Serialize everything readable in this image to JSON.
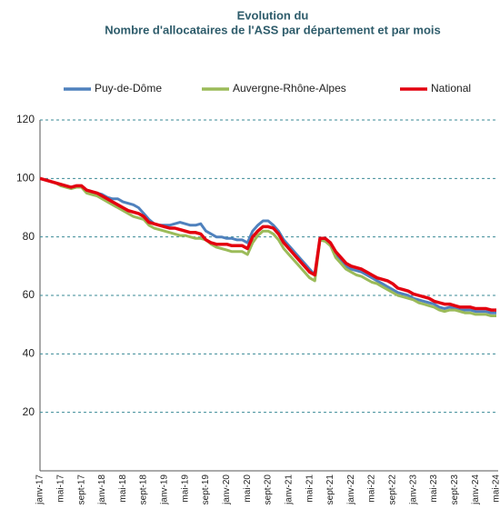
{
  "chart_data": {
    "type": "line",
    "title": "Evolution du",
    "subtitle": "Nombre d'allocataires de l'ASS par département et par mois",
    "categories": [
      "janv-17",
      null,
      null,
      null,
      "mai-17",
      null,
      null,
      null,
      "sept-17",
      null,
      null,
      null,
      "janv-18",
      null,
      null,
      null,
      "mai-18",
      null,
      null,
      null,
      "sept-18",
      null,
      null,
      null,
      "janv-19",
      null,
      null,
      null,
      "mai-19",
      null,
      null,
      null,
      "sept-19",
      null,
      null,
      null,
      "janv-20",
      null,
      null,
      null,
      "mai-20",
      null,
      null,
      null,
      "sept-20",
      null,
      null,
      null,
      "janv-21",
      null,
      null,
      null,
      "mai-21",
      null,
      null,
      null,
      "sept-21",
      null,
      null,
      null,
      "janv-22",
      null,
      null,
      null,
      "mai-22",
      null,
      null,
      null,
      "sept-22",
      null,
      null,
      null,
      "janv-23",
      null,
      null,
      null,
      "mai-23",
      null,
      null,
      null,
      "sept-23",
      null,
      null,
      null,
      "janv-24",
      null,
      null,
      null,
      "mai-24"
    ],
    "series": [
      {
        "name": "Puy-de-Dôme",
        "color": "#4f81bd",
        "values": [
          100,
          99.5,
          99,
          98.5,
          98,
          97.5,
          97,
          97.5,
          97,
          96,
          95.5,
          95,
          94.5,
          93.5,
          93,
          93,
          92,
          91.5,
          91,
          90,
          88,
          86,
          84.5,
          84,
          84,
          84,
          84.5,
          85,
          84.5,
          84,
          84,
          84.5,
          82,
          81,
          80,
          80,
          79.5,
          79.5,
          79,
          79,
          78,
          82,
          84,
          85.5,
          85.5,
          84,
          82,
          79,
          77,
          75,
          73,
          71,
          69,
          67,
          79.5,
          79,
          77,
          74,
          72,
          70,
          69,
          68.5,
          68,
          67,
          66,
          65,
          64,
          63,
          62,
          61,
          60.5,
          60,
          59,
          58.5,
          58,
          57.5,
          57,
          56,
          55.5,
          56,
          55.5,
          55,
          55,
          55,
          54.5,
          54.5,
          54.5,
          54,
          54
        ]
      },
      {
        "name": "Auvergne-Rhône-Alpes",
        "color": "#9bbb59",
        "values": [
          100,
          99.5,
          99,
          98.5,
          97.5,
          97,
          96.5,
          97,
          97,
          95,
          94.5,
          94,
          93,
          92,
          91,
          90,
          89,
          88,
          87,
          86.5,
          86,
          84,
          83,
          82.5,
          82,
          81.5,
          81,
          80.5,
          80.5,
          80,
          79.5,
          79.5,
          79,
          77.5,
          76.5,
          76,
          75.5,
          75,
          75,
          75,
          74,
          78,
          80.5,
          82,
          82,
          81,
          79,
          76,
          74,
          72,
          70,
          68,
          66,
          65,
          79,
          78.5,
          77,
          73,
          71,
          69,
          68,
          67,
          66.5,
          65.5,
          64.5,
          64,
          63,
          62,
          61,
          60,
          59.5,
          59,
          58.5,
          57.5,
          57,
          56.5,
          56,
          55,
          54.5,
          55,
          55,
          54.5,
          54,
          54,
          53.5,
          53.5,
          53.5,
          53,
          53
        ]
      },
      {
        "name": "National",
        "color": "#e3000f",
        "values": [
          100,
          99.5,
          99,
          98.5,
          98,
          97.5,
          97,
          97.5,
          97.5,
          96,
          95.5,
          95,
          94,
          93,
          92,
          91,
          90,
          89,
          88.5,
          88,
          87,
          85,
          84.5,
          84,
          83.5,
          83,
          83,
          82.5,
          82,
          81.5,
          81.5,
          81,
          79,
          78,
          77.5,
          77.5,
          77.5,
          77,
          77,
          77,
          76,
          80,
          82,
          83.5,
          83.5,
          83,
          81,
          78,
          76,
          74,
          72,
          70,
          68,
          67,
          79.5,
          79.5,
          78,
          75,
          73,
          71,
          70,
          69.5,
          69,
          68,
          67,
          66,
          65.5,
          65,
          64,
          62.5,
          62,
          61.5,
          60.5,
          60,
          59.5,
          59,
          58,
          57.5,
          57,
          57,
          56.5,
          56,
          56,
          56,
          55.5,
          55.5,
          55.5,
          55,
          55
        ]
      }
    ],
    "ylim": [
      0,
      120
    ],
    "yticks": [
      20,
      40,
      60,
      80,
      100,
      120
    ],
    "grid": true,
    "legend": "top"
  }
}
